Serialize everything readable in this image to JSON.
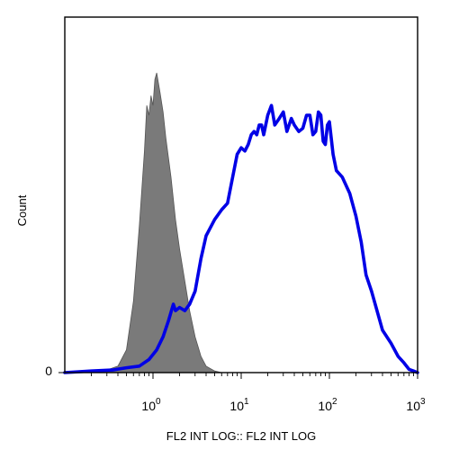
{
  "chart_data": {
    "type": "area",
    "xlabel": "FL2 INT LOG:: FL2 INT LOG",
    "ylabel": "Count",
    "x_scale": "log",
    "xlim": [
      0.1,
      1000
    ],
    "ylim": [
      0,
      1.0
    ],
    "x_ticks": [
      {
        "value": 1,
        "base": "10",
        "exp": "0"
      },
      {
        "value": 10,
        "base": "10",
        "exp": "1"
      },
      {
        "value": 100,
        "base": "10",
        "exp": "2"
      },
      {
        "value": 1000,
        "base": "10",
        "exp": "3"
      }
    ],
    "y_ticks": [
      {
        "value": 0,
        "label": "0"
      }
    ],
    "grid": false,
    "series": [
      {
        "color": "#7a7a7a",
        "style": "filled",
        "points": [
          [
            0.1,
            0.0
          ],
          [
            0.2,
            0.0
          ],
          [
            0.3,
            0.008
          ],
          [
            0.4,
            0.02
          ],
          [
            0.5,
            0.07
          ],
          [
            0.6,
            0.22
          ],
          [
            0.7,
            0.45
          ],
          [
            0.8,
            0.68
          ],
          [
            0.85,
            0.82
          ],
          [
            0.9,
            0.79
          ],
          [
            0.95,
            0.85
          ],
          [
            1.0,
            0.82
          ],
          [
            1.05,
            0.9
          ],
          [
            1.1,
            0.92
          ],
          [
            1.2,
            0.86
          ],
          [
            1.3,
            0.8
          ],
          [
            1.4,
            0.72
          ],
          [
            1.6,
            0.6
          ],
          [
            1.8,
            0.47
          ],
          [
            2.0,
            0.38
          ],
          [
            2.3,
            0.28
          ],
          [
            2.6,
            0.19
          ],
          [
            3.0,
            0.11
          ],
          [
            3.5,
            0.05
          ],
          [
            4.0,
            0.02
          ],
          [
            5.0,
            0.005
          ],
          [
            6.0,
            0.0
          ],
          [
            1000,
            0.0
          ]
        ]
      },
      {
        "color": "#0000e6",
        "style": "line",
        "points": [
          [
            0.1,
            0.0
          ],
          [
            0.2,
            0.005
          ],
          [
            0.35,
            0.008
          ],
          [
            0.5,
            0.015
          ],
          [
            0.7,
            0.02
          ],
          [
            0.9,
            0.04
          ],
          [
            1.1,
            0.07
          ],
          [
            1.3,
            0.11
          ],
          [
            1.5,
            0.16
          ],
          [
            1.7,
            0.21
          ],
          [
            1.8,
            0.19
          ],
          [
            2.0,
            0.2
          ],
          [
            2.3,
            0.19
          ],
          [
            2.6,
            0.21
          ],
          [
            3.0,
            0.25
          ],
          [
            3.5,
            0.35
          ],
          [
            4.0,
            0.42
          ],
          [
            5.0,
            0.47
          ],
          [
            6.0,
            0.5
          ],
          [
            7.0,
            0.52
          ],
          [
            8.0,
            0.6
          ],
          [
            9.0,
            0.67
          ],
          [
            10,
            0.69
          ],
          [
            11,
            0.68
          ],
          [
            12,
            0.7
          ],
          [
            13,
            0.73
          ],
          [
            14,
            0.74
          ],
          [
            15,
            0.73
          ],
          [
            16,
            0.76
          ],
          [
            17,
            0.76
          ],
          [
            18,
            0.73
          ],
          [
            20,
            0.79
          ],
          [
            22,
            0.82
          ],
          [
            24,
            0.76
          ],
          [
            27,
            0.78
          ],
          [
            30,
            0.8
          ],
          [
            33,
            0.74
          ],
          [
            37,
            0.78
          ],
          [
            40,
            0.76
          ],
          [
            45,
            0.74
          ],
          [
            50,
            0.75
          ],
          [
            55,
            0.79
          ],
          [
            60,
            0.79
          ],
          [
            65,
            0.73
          ],
          [
            70,
            0.74
          ],
          [
            75,
            0.8
          ],
          [
            80,
            0.79
          ],
          [
            85,
            0.71
          ],
          [
            90,
            0.7
          ],
          [
            95,
            0.76
          ],
          [
            100,
            0.77
          ],
          [
            110,
            0.67
          ],
          [
            120,
            0.62
          ],
          [
            140,
            0.6
          ],
          [
            170,
            0.55
          ],
          [
            200,
            0.48
          ],
          [
            230,
            0.4
          ],
          [
            260,
            0.3
          ],
          [
            300,
            0.25
          ],
          [
            400,
            0.13
          ],
          [
            500,
            0.09
          ],
          [
            600,
            0.05
          ],
          [
            700,
            0.03
          ],
          [
            800,
            0.01
          ],
          [
            900,
            0.005
          ],
          [
            1000,
            0.0
          ]
        ]
      }
    ]
  }
}
